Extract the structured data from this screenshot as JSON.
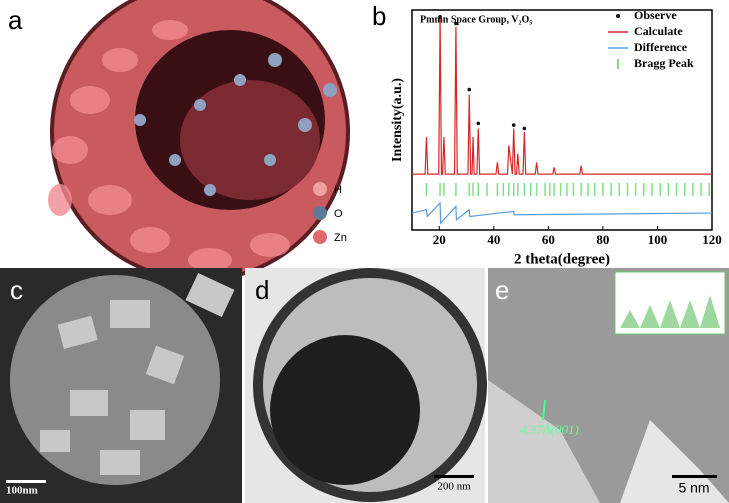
{
  "panels": {
    "a": "a",
    "b": "b",
    "c": "c",
    "d": "d",
    "e": "e"
  },
  "legend_a": [
    "H",
    "O",
    "Zn"
  ],
  "scale_bars": {
    "c": "100nm",
    "d": "200 nm",
    "e": "5 nm"
  },
  "annotation_e": "4.37Å(001)",
  "chart_data": {
    "type": "line",
    "title": "Pmmn Space Group, V₂O₅",
    "x_label": "2 theta(degree)",
    "y_label": "Intensity(a.u.)",
    "xlim": [
      10,
      120
    ],
    "xticks": [
      20,
      40,
      60,
      80,
      100,
      120
    ],
    "ylim": [
      -25,
      105
    ],
    "series": [
      {
        "name": "Observe",
        "color": "#111111",
        "style": "points",
        "x": [
          20.3,
          26.1,
          31.0,
          34.3,
          47.3,
          51.2
        ],
        "values": [
          101,
          97,
          58,
          38,
          37,
          35
        ]
      },
      {
        "name": "Calculate",
        "color": "#d62728",
        "style": "line",
        "x": [
          10,
          14.8,
          15.3,
          15.8,
          19.8,
          20.3,
          20.8,
          21.2,
          21.7,
          22.2,
          25.6,
          26.1,
          26.6,
          30.5,
          31.0,
          31.5,
          32.0,
          32.4,
          32.8,
          33.8,
          34.3,
          34.8,
          40.8,
          41.3,
          41.8,
          45.0,
          45.5,
          46.8,
          47.3,
          47.8,
          48.3,
          48.8,
          49.3,
          50.7,
          51.2,
          51.7,
          55.2,
          55.7,
          56.2,
          61.6,
          62.1,
          62.6,
          71.5,
          72,
          72.5,
          120
        ],
        "values": [
          8,
          8,
          30,
          8,
          8,
          100,
          8,
          8,
          30,
          8,
          8,
          95,
          8,
          8,
          55,
          8,
          8,
          30,
          8,
          8,
          35,
          8,
          8,
          15,
          8,
          8,
          25,
          8,
          35,
          8,
          8,
          20,
          8,
          8,
          33,
          8,
          8,
          15,
          8,
          8,
          12,
          8,
          8,
          13,
          8,
          8
        ]
      },
      {
        "name": "Difference",
        "color": "#5b9bd5",
        "style": "line",
        "x": [
          10,
          15.3,
          15.6,
          20.3,
          20.5,
          26.1,
          26.3,
          31,
          31.2,
          47.3,
          47.5,
          120
        ],
        "values": [
          -15,
          -13,
          -17,
          -9,
          -21,
          -11,
          -19,
          -13,
          -17,
          -14,
          -16,
          -15
        ]
      },
      {
        "name": "Bragg Peak",
        "color": "#7ee08a",
        "style": "ticks",
        "x": [
          15.3,
          20.3,
          21.7,
          26.1,
          31.0,
          32.4,
          34.3,
          37.5,
          41.3,
          43.5,
          45.5,
          47.3,
          48.8,
          51.2,
          53.5,
          55.7,
          58.8,
          60.5,
          62.1,
          64.5,
          66.8,
          69.2,
          72,
          74.5,
          77,
          80,
          83,
          86,
          89,
          92,
          95,
          98,
          101,
          104,
          107,
          110,
          113,
          116,
          119
        ]
      }
    ]
  }
}
